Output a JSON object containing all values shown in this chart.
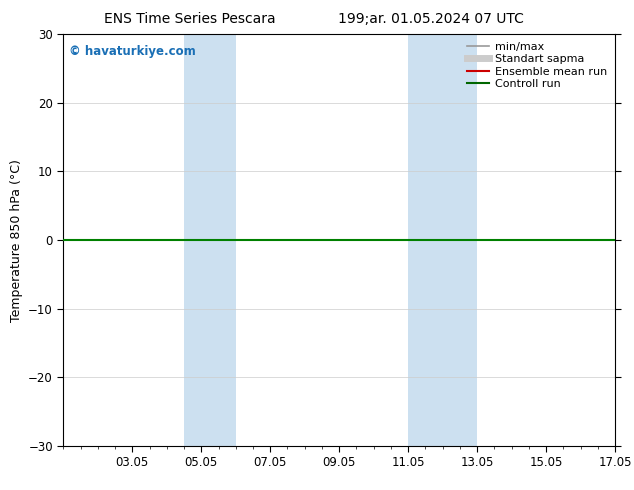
{
  "title_left": "ENS Time Series Pescara",
  "title_right": "199;ar. 01.05.2024 07 UTC",
  "ylabel": "Temperature 850 hPa (°C)",
  "watermark": "© havaturkiye.com",
  "ylim": [
    -30,
    30
  ],
  "yticks": [
    -30,
    -20,
    -10,
    0,
    10,
    20,
    30
  ],
  "xtick_labels": [
    "03.05",
    "05.05",
    "07.05",
    "09.05",
    "11.05",
    "13.05",
    "15.05",
    "17.05"
  ],
  "xtick_positions": [
    3,
    5,
    7,
    9,
    11,
    13,
    15,
    17
  ],
  "xlim": [
    1,
    17
  ],
  "shaded_regions": [
    {
      "xmin": 4.5,
      "xmax": 6.0,
      "color": "#cce0f0"
    },
    {
      "xmin": 11.0,
      "xmax": 13.0,
      "color": "#cce0f0"
    }
  ],
  "hline_y": 0,
  "hline_color": "green",
  "hline_lw": 1.5,
  "legend_items": [
    {
      "label": "min/max",
      "color": "#999999",
      "lw": 1.2,
      "ls": "-"
    },
    {
      "label": "Standart sapma",
      "color": "#cccccc",
      "lw": 5,
      "ls": "-"
    },
    {
      "label": "Ensemble mean run",
      "color": "#cc0000",
      "lw": 1.5,
      "ls": "-"
    },
    {
      "label": "Controll run",
      "color": "#006600",
      "lw": 1.5,
      "ls": "-"
    }
  ],
  "background_color": "#ffffff",
  "plot_bg_color": "#ffffff",
  "grid_color": "#cccccc",
  "watermark_color": "#1a6fb5",
  "title_fontsize": 10,
  "tick_fontsize": 8.5,
  "ylabel_fontsize": 9,
  "legend_fontsize": 8
}
